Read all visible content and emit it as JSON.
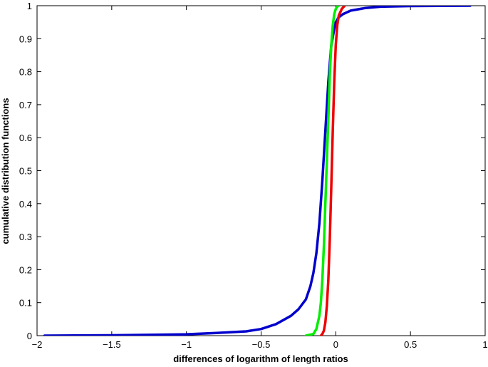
{
  "chart_data": {
    "type": "line",
    "title": "",
    "xlabel": "differences of logarithm of length ratios",
    "ylabel": "cumulative distribution functions",
    "xlim": [
      -2,
      1
    ],
    "ylim": [
      0,
      1
    ],
    "grid": false,
    "legend": "none",
    "x_ticks": [
      -2,
      -1.5,
      -1,
      -0.5,
      0,
      0.5,
      1
    ],
    "x_tick_labels": [
      "−2",
      "−1.5",
      "−1",
      "−0.5",
      "0",
      "0.5",
      "1"
    ],
    "y_ticks": [
      0,
      0.1,
      0.2,
      0.3,
      0.4,
      0.5,
      0.6,
      0.7,
      0.8,
      0.9,
      1
    ],
    "y_tick_labels": [
      "0",
      "0.1",
      "0.2",
      "0.3",
      "0.4",
      "0.5",
      "0.6",
      "0.7",
      "0.8",
      "0.9",
      "1"
    ],
    "series": [
      {
        "color": "#0000cc",
        "x": [
          -1.95,
          -1.5,
          -1.0,
          -0.8,
          -0.6,
          -0.5,
          -0.4,
          -0.3,
          -0.25,
          -0.2,
          -0.17,
          -0.15,
          -0.13,
          -0.11,
          -0.09,
          -0.07,
          -0.05,
          -0.03,
          -0.01,
          0.0,
          0.02,
          0.05,
          0.1,
          0.2,
          0.3,
          0.5,
          0.9
        ],
        "y": [
          0.0,
          0.001,
          0.004,
          0.008,
          0.013,
          0.02,
          0.035,
          0.06,
          0.08,
          0.11,
          0.15,
          0.19,
          0.25,
          0.34,
          0.47,
          0.62,
          0.77,
          0.88,
          0.93,
          0.95,
          0.965,
          0.975,
          0.985,
          0.993,
          0.997,
          0.999,
          1.0
        ]
      },
      {
        "color": "#00ee00",
        "x": [
          -0.2,
          -0.15,
          -0.13,
          -0.11,
          -0.1,
          -0.09,
          -0.08,
          -0.07,
          -0.06,
          -0.05,
          -0.04,
          -0.03,
          -0.02,
          -0.01,
          0.0,
          0.01,
          0.02
        ],
        "y": [
          0.0,
          0.005,
          0.02,
          0.06,
          0.1,
          0.17,
          0.27,
          0.4,
          0.53,
          0.66,
          0.79,
          0.88,
          0.94,
          0.975,
          0.99,
          0.997,
          1.0
        ]
      },
      {
        "color": "#ee0000",
        "x": [
          -0.1,
          -0.09,
          -0.08,
          -0.07,
          -0.06,
          -0.05,
          -0.04,
          -0.03,
          -0.02,
          -0.01,
          0.0,
          0.01,
          0.02,
          0.04,
          0.06
        ],
        "y": [
          0.0,
          0.005,
          0.015,
          0.04,
          0.09,
          0.17,
          0.29,
          0.45,
          0.62,
          0.77,
          0.88,
          0.94,
          0.97,
          0.99,
          1.0
        ]
      }
    ]
  }
}
